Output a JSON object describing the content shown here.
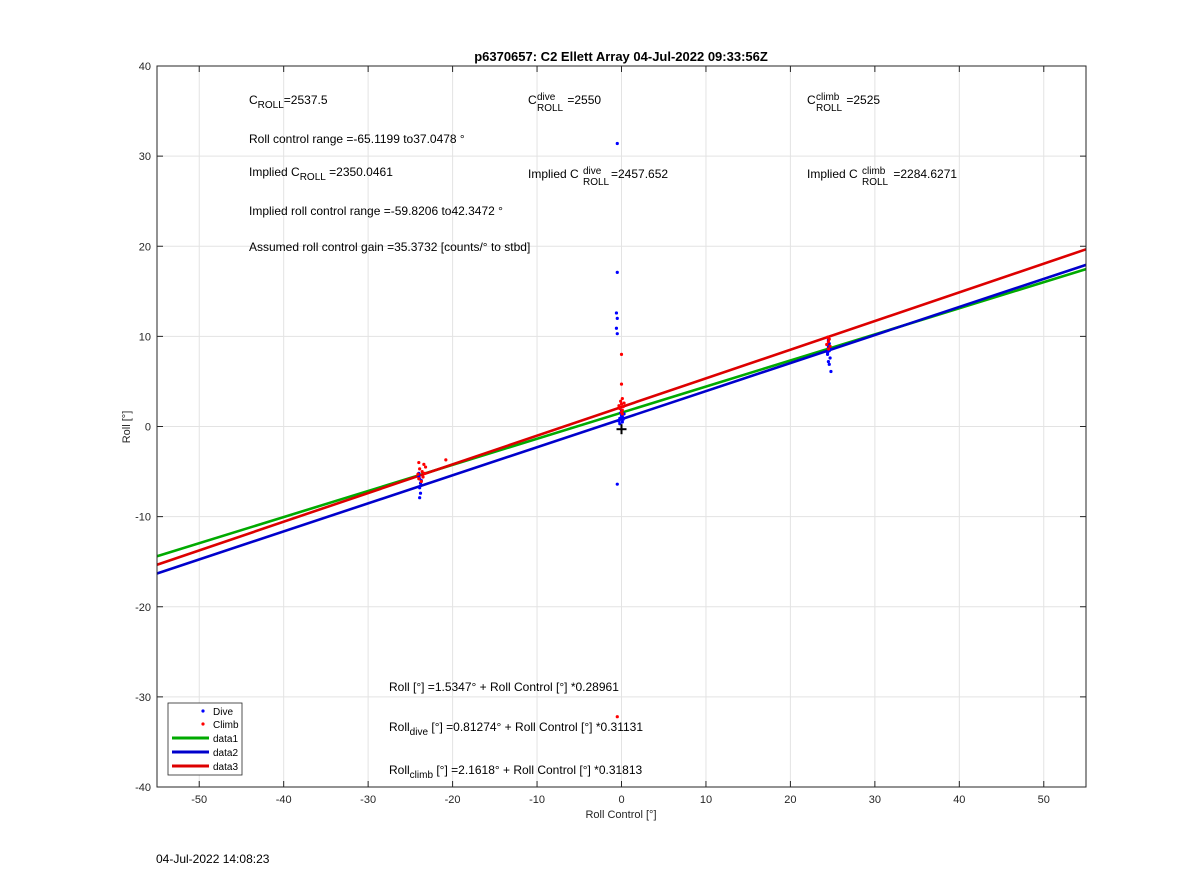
{
  "footer_timestamp": "04-Jul-2022 14:08:23",
  "chart_data": {
    "type": "scatter",
    "title": "p6370657: C2 Ellett Array 04-Jul-2022 09:33:56Z",
    "xlabel": "Roll Control [°]",
    "ylabel": "Roll [°]",
    "xlim": [
      -55,
      55
    ],
    "ylim": [
      -40,
      40
    ],
    "xticks": [
      -50,
      -40,
      -30,
      -20,
      -10,
      0,
      10,
      20,
      30,
      40,
      50
    ],
    "yticks": [
      -40,
      -30,
      -20,
      -10,
      0,
      10,
      20,
      30,
      40
    ],
    "grid": true,
    "legend_position": "bottom-left",
    "annotations": {
      "c_roll": {
        "base": "C",
        "sub": "ROLL",
        "value": "=2537.5"
      },
      "c_roll_dive": {
        "base": "C",
        "sub": "ROLL",
        "sup": "dive",
        "value": " =2550"
      },
      "c_roll_climb": {
        "base": "C",
        "sub": "ROLL",
        "sup": "climb",
        "value": " =2525"
      },
      "roll_range": "Roll control range =-65.1199 to37.0478 °",
      "implied_c_roll": {
        "prefix": "Implied C",
        "sub": "ROLL",
        "value": " =2350.0461"
      },
      "implied_c_roll_dive": {
        "prefix": "Implied C",
        "sub": "ROLL",
        "sup": "dive",
        "value": "=2457.652"
      },
      "implied_c_roll_climb": {
        "prefix": "Implied C",
        "sub": "ROLL",
        "sup": "climb",
        "value": " =2284.6271"
      },
      "implied_range": "Implied roll control range =-59.8206 to42.3472 °",
      "gain": "Assumed roll control gain =35.3732 [counts/° to stbd]",
      "eq_all": "Roll [°] =1.5347° + Roll Control [°] *0.28961",
      "eq_dive": {
        "prefix": "Roll",
        "sub": "dive",
        "rest": " [°] =0.81274° + Roll Control [°] *0.31131"
      },
      "eq_climb": {
        "prefix": "Roll",
        "sub": "climb",
        "rest": " [°] =2.1618° + Roll Control [°] *0.31813"
      }
    },
    "series": [
      {
        "name": "Dive",
        "kind": "points",
        "color": "#0000ff",
        "points": [
          [
            -24.0,
            -5.2
          ],
          [
            -23.9,
            -5.8
          ],
          [
            -23.8,
            -6.3
          ],
          [
            -23.9,
            -6.8
          ],
          [
            -23.8,
            -7.4
          ],
          [
            -23.9,
            -7.9
          ],
          [
            -24.0,
            -5.5
          ],
          [
            -23.7,
            -6.0
          ],
          [
            -0.5,
            31.4
          ],
          [
            -0.5,
            17.1
          ],
          [
            -0.6,
            12.6
          ],
          [
            -0.5,
            12.0
          ],
          [
            -0.6,
            10.9
          ],
          [
            -0.5,
            10.3
          ],
          [
            -0.5,
            -6.4
          ],
          [
            -0.3,
            0.6
          ],
          [
            -0.2,
            0.9
          ],
          [
            0.0,
            1.2
          ],
          [
            0.1,
            0.5
          ],
          [
            -0.1,
            1.5
          ],
          [
            0.2,
            0.8
          ],
          [
            0.0,
            1.8
          ],
          [
            -0.2,
            0.3
          ],
          [
            0.1,
            1.1
          ],
          [
            0.3,
            1.4
          ],
          [
            24.5,
            9.6
          ],
          [
            24.6,
            9.2
          ],
          [
            24.5,
            8.8
          ],
          [
            24.6,
            8.4
          ],
          [
            24.4,
            8.0
          ],
          [
            24.7,
            7.6
          ],
          [
            24.5,
            7.2
          ],
          [
            24.6,
            6.9
          ],
          [
            24.8,
            6.1
          ],
          [
            24.5,
            9.0
          ],
          [
            24.7,
            8.6
          ],
          [
            24.4,
            8.2
          ]
        ]
      },
      {
        "name": "Climb",
        "kind": "points",
        "color": "#ff0000",
        "points": [
          [
            -24.0,
            -4.0
          ],
          [
            -23.4,
            -4.2
          ],
          [
            -23.2,
            -4.5
          ],
          [
            -23.9,
            -4.7
          ],
          [
            -23.6,
            -5.0
          ],
          [
            -24.1,
            -5.3
          ],
          [
            -23.5,
            -5.6
          ],
          [
            -24.0,
            -5.8
          ],
          [
            -23.7,
            -6.1
          ],
          [
            -23.3,
            -5.2
          ],
          [
            -20.8,
            -3.7
          ],
          [
            0.0,
            8.0
          ],
          [
            0.0,
            4.7
          ],
          [
            0.1,
            3.1
          ],
          [
            -0.1,
            2.8
          ],
          [
            0.0,
            2.5
          ],
          [
            0.2,
            2.2
          ],
          [
            -0.2,
            2.0
          ],
          [
            0.1,
            1.8
          ],
          [
            0.0,
            1.6
          ],
          [
            0.3,
            2.6
          ],
          [
            -0.3,
            2.3
          ],
          [
            0.1,
            1.4
          ],
          [
            24.4,
            9.9
          ],
          [
            24.6,
            9.7
          ],
          [
            24.5,
            9.4
          ],
          [
            24.3,
            9.1
          ],
          [
            24.7,
            8.9
          ],
          [
            24.5,
            8.6
          ],
          [
            -0.5,
            -32.2
          ]
        ]
      },
      {
        "name": "data1",
        "kind": "line",
        "color": "#00aa00",
        "intercept": 1.5347,
        "slope": 0.28961
      },
      {
        "name": "data2",
        "kind": "line",
        "color": "#0000cc",
        "intercept": 0.81274,
        "slope": 0.31131
      },
      {
        "name": "data3",
        "kind": "line",
        "color": "#dd0000",
        "intercept": 2.1618,
        "slope": 0.31813
      }
    ]
  }
}
